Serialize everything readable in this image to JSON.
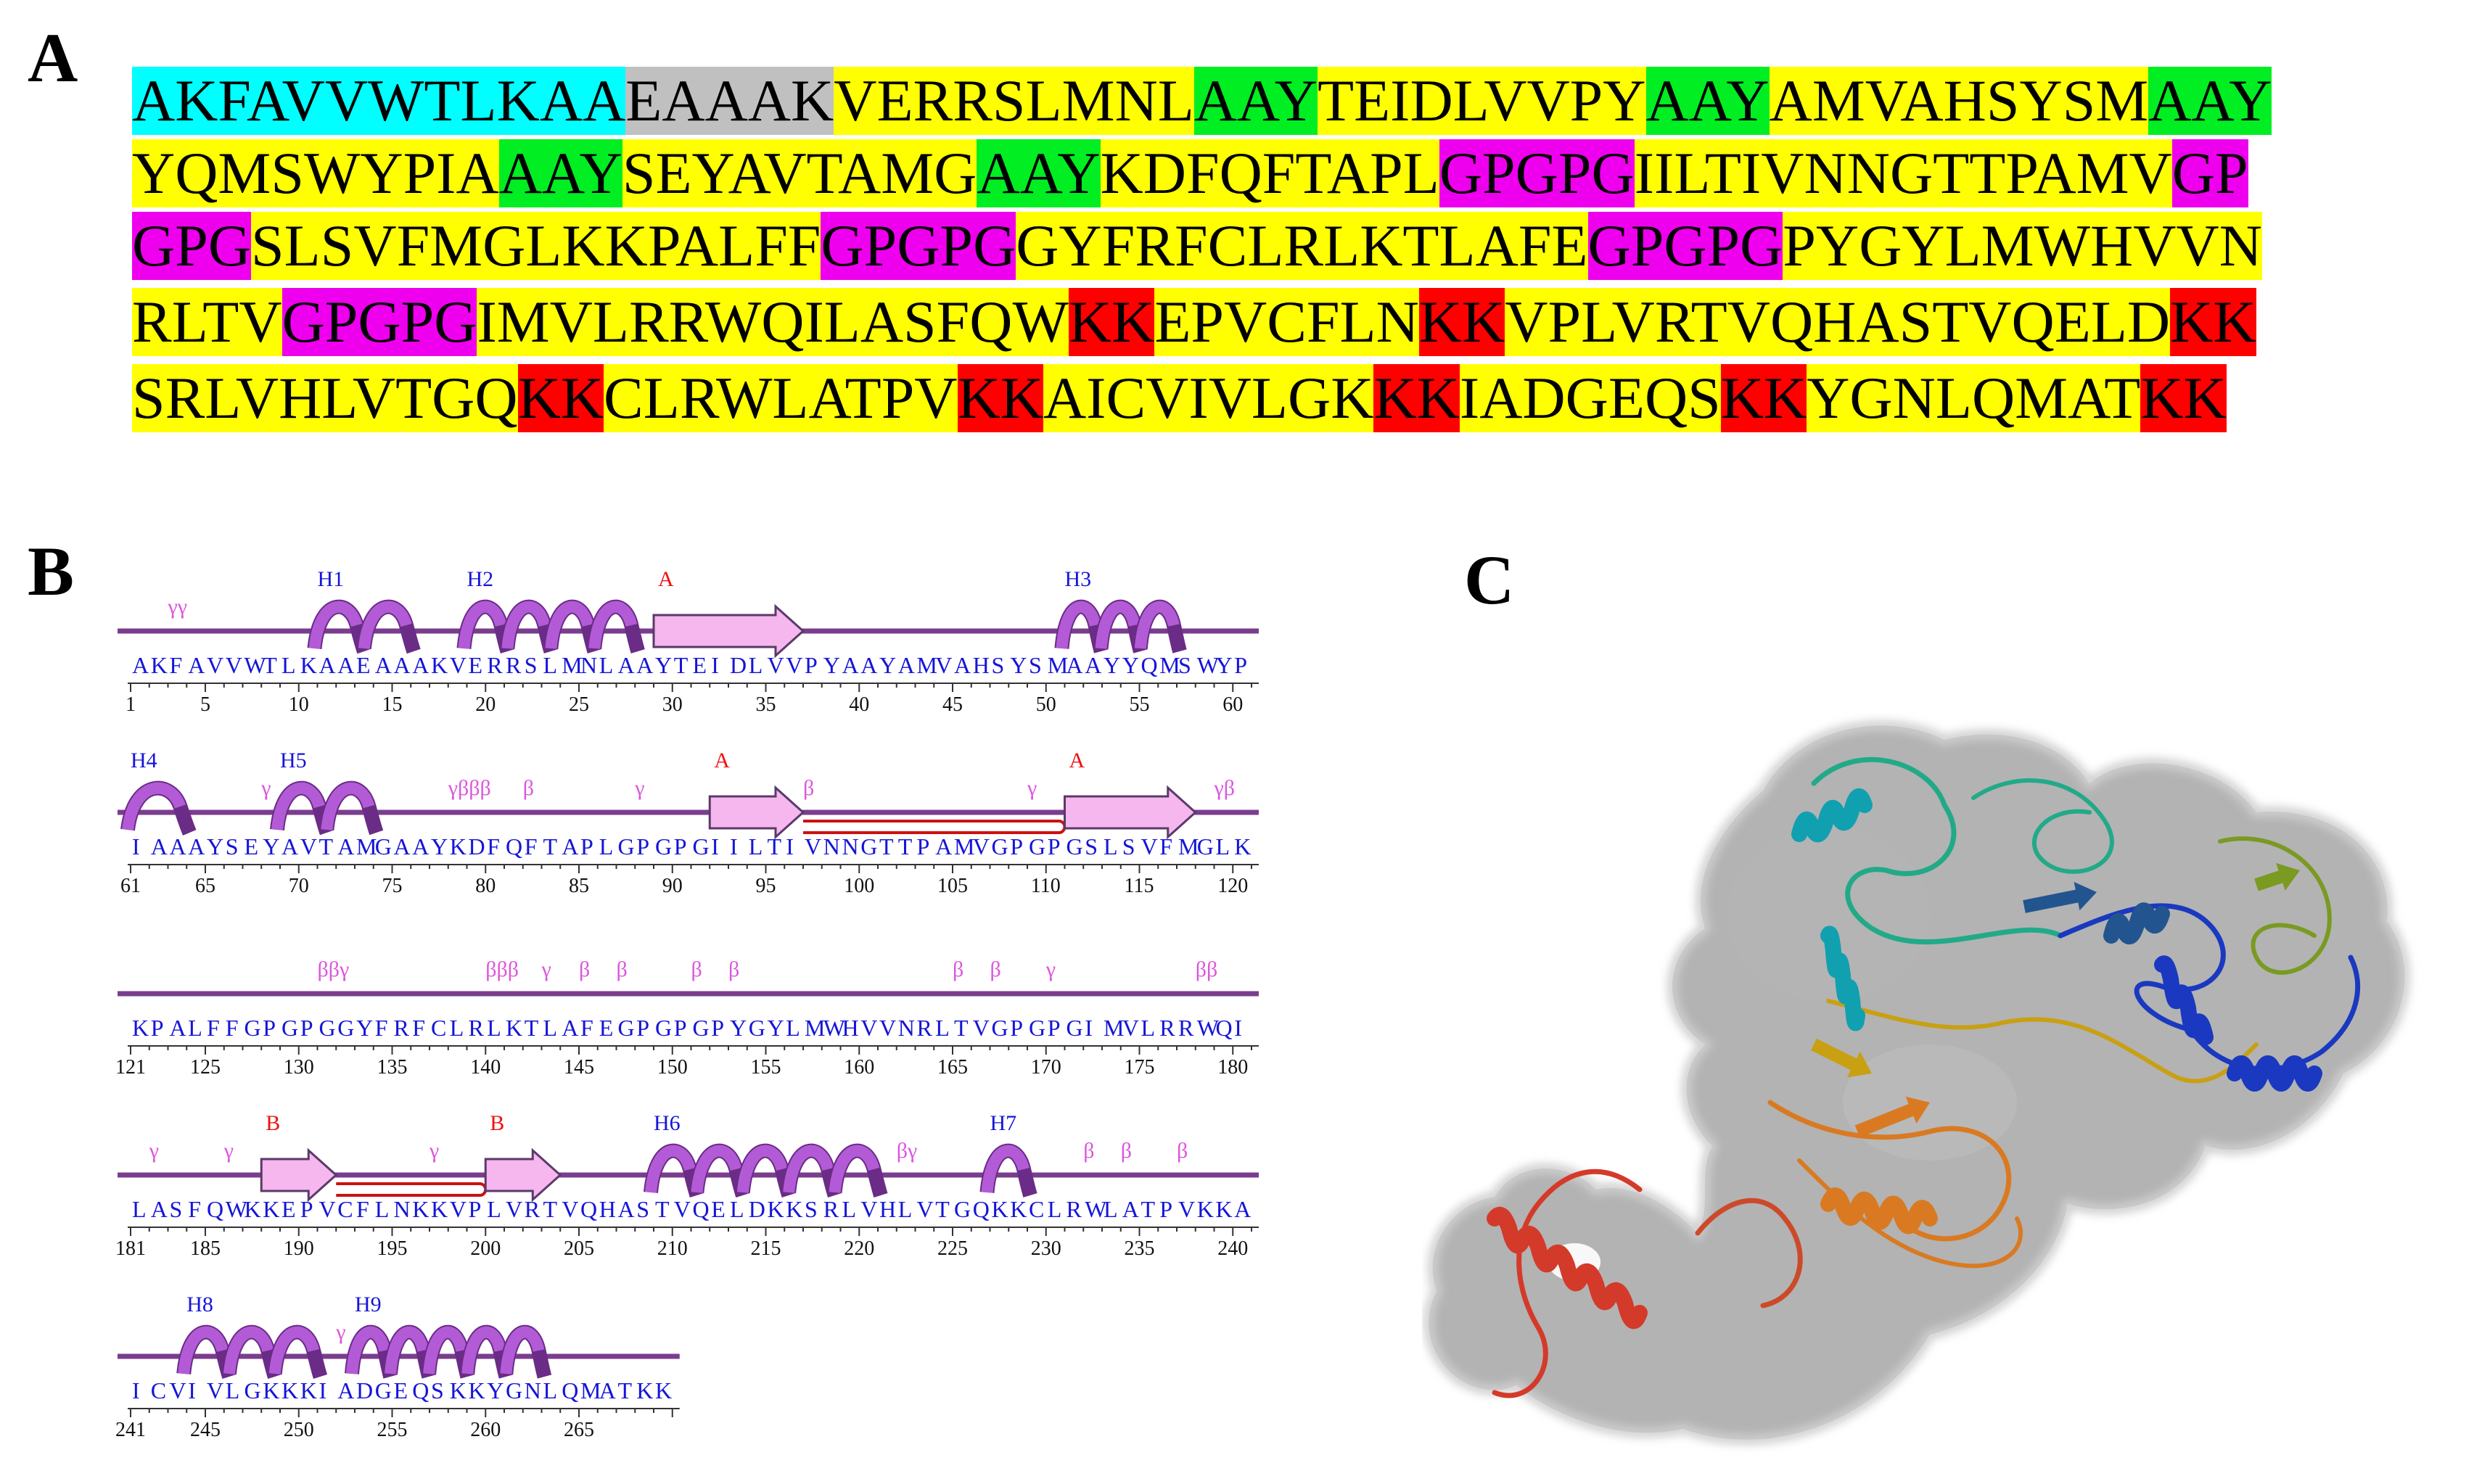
{
  "panel_labels": {
    "a": "A",
    "b": "B",
    "c": "C"
  },
  "colors": {
    "cyan": "#00ffff",
    "gray": "#c0c0c0",
    "yellow": "#ffff00",
    "green": "#00ee22",
    "magenta": "#ee00ee",
    "red": "#ff0000",
    "sequence_blue": "#1515d8",
    "helix_label": "#1515d8",
    "strand_label": "#ee1111",
    "turn_label": "#dd55dd",
    "backbone": "#7a3d8e",
    "helix_fill": "#b35bd6",
    "strand_fill": "#f6b6ee"
  },
  "panel_a": {
    "rows": [
      [
        {
          "t": "AKFAVVWTLKAA",
          "c": "cyan"
        },
        {
          "t": "EAAAK",
          "c": "gray"
        },
        {
          "t": "VERRSLMNL",
          "c": "yellow"
        },
        {
          "t": "AAY",
          "c": "green"
        },
        {
          "t": "TEIDLVVPY",
          "c": "yellow"
        },
        {
          "t": "AAY",
          "c": "green"
        },
        {
          "t": "AMVAHSYSM",
          "c": "yellow"
        },
        {
          "t": "AAY",
          "c": "green"
        }
      ],
      [
        {
          "t": "YQMSWYPIA",
          "c": "yellow"
        },
        {
          "t": "AAY",
          "c": "green"
        },
        {
          "t": "SEYAVTAMG",
          "c": "yellow"
        },
        {
          "t": "AAY",
          "c": "green"
        },
        {
          "t": "KDFQFTAPL",
          "c": "yellow"
        },
        {
          "t": "GPGPG",
          "c": "magenta"
        },
        {
          "t": "IILTIVNNGTTPAMV",
          "c": "yellow"
        },
        {
          "t": "GP",
          "c": "magenta"
        }
      ],
      [
        {
          "t": "GPG",
          "c": "magenta"
        },
        {
          "t": "SLSVFMGLKKPALFF",
          "c": "yellow"
        },
        {
          "t": "GPGPG",
          "c": "magenta"
        },
        {
          "t": "GYFRFCLRLKTLAFE",
          "c": "yellow"
        },
        {
          "t": "GPGPG",
          "c": "magenta"
        },
        {
          "t": "PYGYLMWHVVN",
          "c": "yellow"
        }
      ],
      [
        {
          "t": "RLTV",
          "c": "yellow"
        },
        {
          "t": "GPGPG",
          "c": "magenta"
        },
        {
          "t": "IMVLRRWQILASFQW",
          "c": "yellow"
        },
        {
          "t": "KK",
          "c": "red"
        },
        {
          "t": "EPVCFLN",
          "c": "yellow"
        },
        {
          "t": "KK",
          "c": "red"
        },
        {
          "t": "VPLVRTVQHASTVQELD",
          "c": "yellow"
        },
        {
          "t": "KK",
          "c": "red"
        }
      ],
      [
        {
          "t": "SRLVHLVTGQ",
          "c": "yellow"
        },
        {
          "t": "KK",
          "c": "red"
        },
        {
          "t": "CLRWLATPV",
          "c": "yellow"
        },
        {
          "t": "KK",
          "c": "red"
        },
        {
          "t": "AICVIVLGK",
          "c": "yellow"
        },
        {
          "t": "KK",
          "c": "red"
        },
        {
          "t": "IADGEQS",
          "c": "yellow"
        },
        {
          "t": "KK",
          "c": "red"
        },
        {
          "t": "YGNLQMAT",
          "c": "yellow"
        },
        {
          "t": "KK",
          "c": "red"
        }
      ]
    ]
  },
  "panel_b": {
    "rows": [
      {
        "start": 1,
        "seq": "AKFAVVWTLKAAEAAAKVERRSLMNLAAYTEIDLVVPYAAYAMVAHSYSMAAYYQMSWYP",
        "helices": [
          {
            "label": "H1",
            "from": 11,
            "to": 15
          },
          {
            "label": "H2",
            "from": 19,
            "to": 27
          },
          {
            "label": "H3",
            "from": 51,
            "to": 56
          }
        ],
        "strands": [
          {
            "label": "A",
            "from": 29,
            "to": 36
          }
        ],
        "turns": [
          {
            "text": "γγ",
            "at": 3
          }
        ],
        "hairpins": []
      },
      {
        "start": 61,
        "seq": "IAAAYSEYAVTAMGAAYKDFQFTAPLGPGPGIILTIVNNGTTPAMVGPGPGSLSVFMGLK",
        "helices": [
          {
            "label": "H4",
            "from": 61,
            "to": 63
          },
          {
            "label": "H5",
            "from": 69,
            "to": 73
          }
        ],
        "strands": [
          {
            "label": "A",
            "from": 92,
            "to": 96
          },
          {
            "label": "A",
            "from": 111,
            "to": 117
          }
        ],
        "turns": [
          {
            "text": "γ",
            "at": 68
          },
          {
            "text": "γβββ",
            "at": 78
          },
          {
            "text": "β",
            "at": 82
          },
          {
            "text": "γ",
            "at": 88
          },
          {
            "text": "β",
            "at": 97
          },
          {
            "text": "γ",
            "at": 109
          },
          {
            "text": "γβ",
            "at": 119
          }
        ],
        "hairpins": [
          {
            "from": 97,
            "to": 110
          }
        ]
      },
      {
        "start": 121,
        "seq": "KPALFFGPGPGGYFRFCLRLKTLAFEGPGPGPYGYLMWHVVNRLTVGPGPGIMVLRRWQI",
        "helices": [],
        "strands": [],
        "turns": [
          {
            "text": "ββγ",
            "at": 131
          },
          {
            "text": "βββ",
            "at": 140
          },
          {
            "text": "γ",
            "at": 143
          },
          {
            "text": "β",
            "at": 145
          },
          {
            "text": "β",
            "at": 147
          },
          {
            "text": "β",
            "at": 151
          },
          {
            "text": "β",
            "at": 153
          },
          {
            "text": "β",
            "at": 165
          },
          {
            "text": "β",
            "at": 167
          },
          {
            "text": "γ",
            "at": 170
          },
          {
            "text": "ββ",
            "at": 178
          }
        ],
        "hairpins": []
      },
      {
        "start": 181,
        "seq": "LASFQWKKEPVCFLNKKVPLVRTVQHASTVQELDKKSRLVHLVTGQKKCLRWLATPVKKA",
        "helices": [
          {
            "label": "H6",
            "from": 209,
            "to": 220
          },
          {
            "label": "H7",
            "from": 227,
            "to": 228
          }
        ],
        "strands": [
          {
            "label": "B",
            "from": 188,
            "to": 191
          },
          {
            "label": "B",
            "from": 200,
            "to": 203
          }
        ],
        "turns": [
          {
            "text": "γ",
            "at": 182
          },
          {
            "text": "γ",
            "at": 186
          },
          {
            "text": "γ",
            "at": 197
          },
          {
            "text": "βγ",
            "at": 222
          },
          {
            "text": "β",
            "at": 232
          },
          {
            "text": "β",
            "at": 234
          },
          {
            "text": "β",
            "at": 237
          }
        ],
        "hairpins": [
          {
            "from": 192,
            "to": 199
          }
        ]
      },
      {
        "start": 241,
        "seq": "ICVIVLGKKKIADGEQSKKYGNLQMATKK",
        "helices": [
          {
            "label": "H8",
            "from": 244,
            "to": 250
          },
          {
            "label": "H9",
            "from": 253,
            "to": 262
          }
        ],
        "strands": [],
        "turns": [
          {
            "text": "γ",
            "at": 252
          }
        ],
        "hairpins": []
      }
    ],
    "ticks": [
      [
        "1",
        "5",
        "10",
        "15",
        "20",
        "25",
        "30",
        "35",
        "40",
        "45",
        "50",
        "55",
        "60"
      ],
      [
        "61",
        "65",
        "70",
        "75",
        "80",
        "85",
        "90",
        "95",
        "100",
        "105",
        "110",
        "115",
        "120"
      ],
      [
        "121",
        "125",
        "130",
        "135",
        "140",
        "145",
        "150",
        "155",
        "160",
        "165",
        "170",
        "175",
        "180"
      ],
      [
        "181",
        "185",
        "190",
        "195",
        "200",
        "205",
        "210",
        "215",
        "220",
        "225",
        "230",
        "235",
        "240"
      ],
      [
        "241",
        "245",
        "250",
        "255",
        "260",
        "265"
      ]
    ]
  },
  "panel_c": {
    "surface_color": "#9a9a9a",
    "chain_colors": [
      "#22aa88",
      "#11a0b0",
      "#22558f",
      "#1a39c0",
      "#7a9a22",
      "#c8a012",
      "#d97a22",
      "#cc4a2a",
      "#d43a2a"
    ]
  }
}
